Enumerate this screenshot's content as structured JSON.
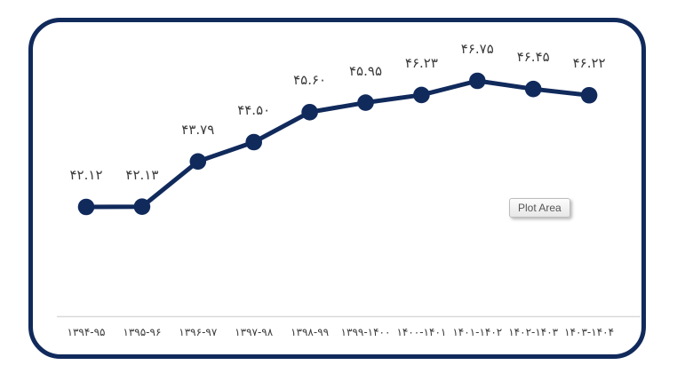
{
  "tooltip": {
    "label": "Plot Area"
  },
  "chart_data": {
    "type": "line",
    "title": "",
    "xlabel": "",
    "ylabel": "",
    "categories": [
      "۱۳۹۴-۹۵",
      "۱۳۹۵-۹۶",
      "۱۳۹۶-۹۷",
      "۱۳۹۷-۹۸",
      "۱۳۹۸-۹۹",
      "۱۳۹۹-۱۴۰۰",
      "۱۴۰۰-۱۴۰۱",
      "۱۴۰۱-۱۴۰۲",
      "۱۴۰۲-۱۴۰۳",
      "۱۴۰۳-۱۴۰۴"
    ],
    "values": [
      42.12,
      42.13,
      43.79,
      44.5,
      45.6,
      45.95,
      46.23,
      46.75,
      46.45,
      46.22
    ],
    "point_labels": [
      "۴۲.۱۲",
      "۴۲.۱۳",
      "۴۳.۷۹",
      "۴۴.۵۰",
      "۴۵.۶۰",
      "۴۵.۹۵",
      "۴۶.۲۳",
      "۴۶.۷۵",
      "۴۶.۴۵",
      "۴۶.۲۲"
    ],
    "legend": "none",
    "grid": "off",
    "line_color": "#112a5c",
    "marker_color": "#112a5c",
    "label_color": "#3c3c3c",
    "axis_line_color": "#d9d9d9",
    "border_color": "#112a5c"
  }
}
